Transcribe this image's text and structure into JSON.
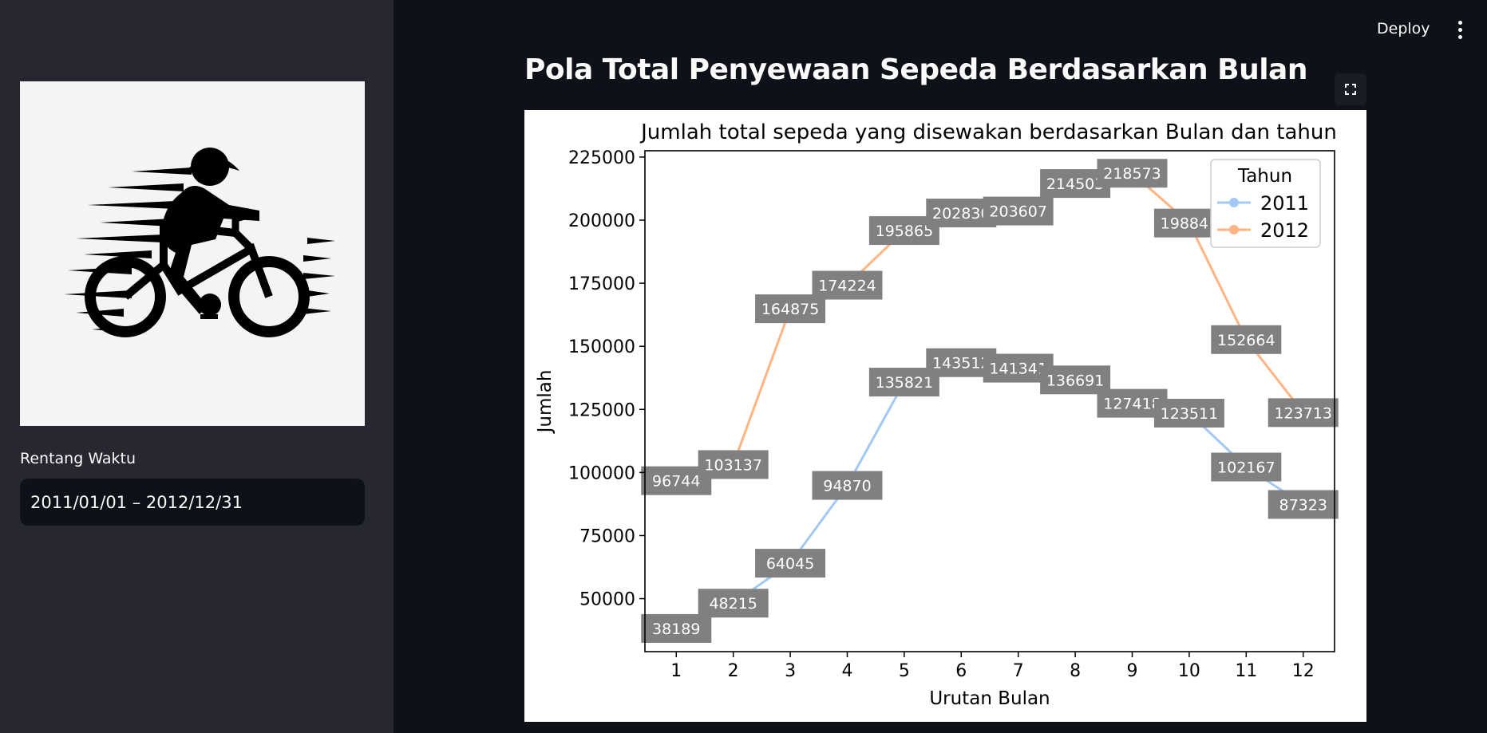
{
  "sidebar": {
    "logo_icon": "cyclist-logo",
    "date_label": "Rentang Waktu",
    "date_value": "2011/01/01 – 2012/12/31"
  },
  "header": {
    "deploy_label": "Deploy",
    "menu_icon": "vertical-dots-icon"
  },
  "main": {
    "title": "Pola Total Penyewaan Sepeda Berdasarkan Bulan",
    "fullscreen_icon": "expand-icon"
  },
  "chart_data": {
    "type": "line",
    "title": "Jumlah total sepeda yang disewakan berdasarkan Bulan dan tahun",
    "xlabel": "Urutan Bulan",
    "ylabel": "Jumlah",
    "x": [
      1,
      2,
      3,
      4,
      5,
      6,
      7,
      8,
      9,
      10,
      11,
      12
    ],
    "xlim": [
      0.45,
      12.55
    ],
    "ylim": [
      29000,
      227500
    ],
    "yticks": [
      50000,
      75000,
      100000,
      125000,
      150000,
      175000,
      200000,
      225000
    ],
    "grid": false,
    "legend": {
      "title": "Tahun",
      "position": "top-right"
    },
    "series": [
      {
        "name": "2011",
        "color": "#a1c9f4",
        "values": [
          38189,
          48215,
          64045,
          94870,
          135821,
          143512,
          141341,
          136691,
          127418,
          123511,
          102167,
          87323
        ]
      },
      {
        "name": "2012",
        "color": "#ffb482",
        "values": [
          96744,
          103137,
          164875,
          174224,
          195865,
          202830,
          203607,
          214503,
          218573,
          198841,
          152664,
          123713
        ]
      }
    ]
  }
}
